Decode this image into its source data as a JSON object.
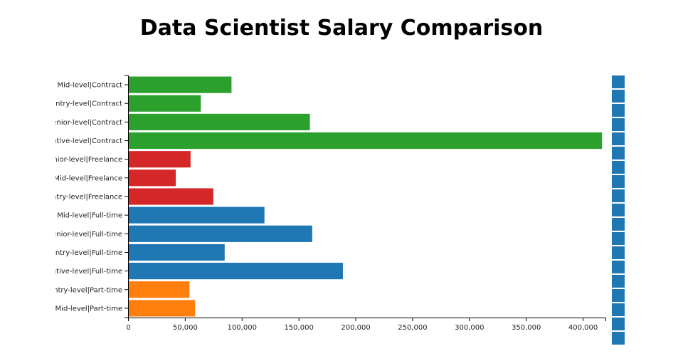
{
  "chart_data": {
    "type": "bar",
    "orientation": "horizontal",
    "title": "Data Scientist Salary Comparison",
    "xlabel": "",
    "ylabel": "",
    "xlim": [
      0,
      420000
    ],
    "x_ticks": [
      0,
      50000,
      100000,
      150000,
      200000,
      250000,
      300000,
      350000,
      400000
    ],
    "x_tick_labels": [
      "0",
      "50,000",
      "100,000",
      "150,000",
      "200,000",
      "250,000",
      "300,000",
      "350,000",
      "400,000"
    ],
    "grid": false,
    "categories": [
      {
        "label": "Mid-level|Contract",
        "value": 91000,
        "color": "#2ca02c"
      },
      {
        "label": "Entry-level|Contract",
        "value": 64000,
        "color": "#2ca02c"
      },
      {
        "label": "Senior-level|Contract",
        "value": 160000,
        "color": "#2ca02c"
      },
      {
        "label": "Executive-level|Contract",
        "value": 417000,
        "color": "#2ca02c"
      },
      {
        "label": "Senior-level|Freelance",
        "value": 55000,
        "color": "#d62728"
      },
      {
        "label": "Mid-level|Freelance",
        "value": 42000,
        "color": "#d62728"
      },
      {
        "label": "Entry-level|Freelance",
        "value": 75000,
        "color": "#d62728"
      },
      {
        "label": "Mid-level|Full-time",
        "value": 120000,
        "color": "#1f77b4"
      },
      {
        "label": "Senior-level|Full-time",
        "value": 162000,
        "color": "#1f77b4"
      },
      {
        "label": "Entry-level|Full-time",
        "value": 85000,
        "color": "#1f77b4"
      },
      {
        "label": "Executive-level|Full-time",
        "value": 189000,
        "color": "#1f77b4"
      },
      {
        "label": "Entry-level|Part-time",
        "value": 54000,
        "color": "#ff7f0e"
      },
      {
        "label": "Mid-level|Part-time",
        "value": 59000,
        "color": "#ff7f0e"
      }
    ],
    "legend_color": "#1f77b4"
  }
}
